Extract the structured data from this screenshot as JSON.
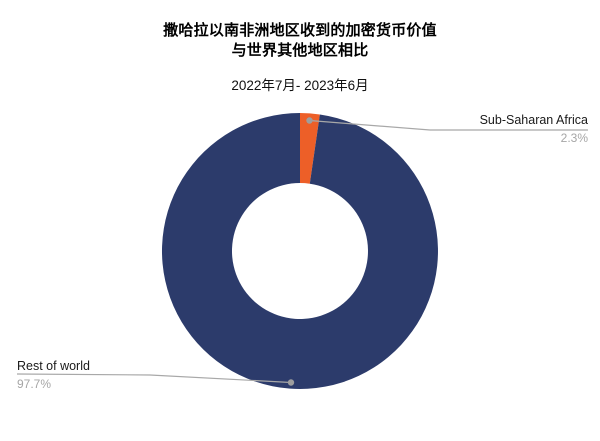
{
  "header": {
    "title_line1": "撒哈拉以南非洲地区收到的加密货币价值",
    "title_line2": "与世界其他地区相比",
    "subtitle": "2022年7月- 2023年6月"
  },
  "chart_data": {
    "type": "pie",
    "subtype": "donut",
    "title": "撒哈拉以南非洲地区收到的加密货币价值 与世界其他地区相比",
    "subtitle": "2022年7月- 2023年6月",
    "labels": [
      "Sub-Saharan Africa",
      "Rest of world"
    ],
    "values": [
      2.3,
      97.7
    ],
    "value_labels": [
      "2.3%",
      "97.7%"
    ],
    "colors": [
      "#ED5F28",
      "#2C3B6B"
    ],
    "start_angle_deg": 0,
    "direction": "clockwise",
    "inner_radius_ratio": 0.49,
    "legend_position": "none",
    "annotations": [
      {
        "label": "Sub-Saharan Africa",
        "percent": "2.3%",
        "side": "right"
      },
      {
        "label": "Rest of world",
        "percent": "97.7%",
        "side": "left"
      }
    ]
  },
  "style": {
    "leader_line_color": "#a8a8a8",
    "marker_dot_color": "#9e9e9e",
    "label_color": "#1a1a1a",
    "percent_color": "#a6a6a6",
    "background": "#ffffff"
  }
}
